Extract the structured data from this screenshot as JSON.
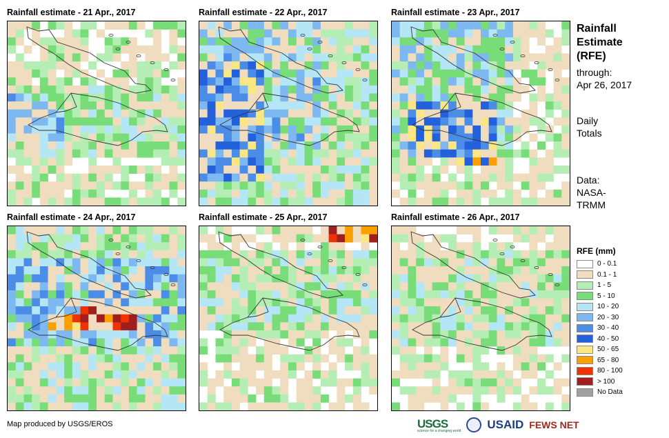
{
  "panels": [
    {
      "title": "Rainfall estimate - 21 Apr., 2017",
      "name": "map-21-apr"
    },
    {
      "title": "Rainfall estimate - 22 Apr., 2017",
      "name": "map-22-apr"
    },
    {
      "title": "Rainfall estimate - 23 Apr., 2017",
      "name": "map-23-apr"
    },
    {
      "title": "Rainfall estimate - 24 Apr., 2017",
      "name": "map-24-apr"
    },
    {
      "title": "Rainfall estimate - 25 Apr., 2017",
      "name": "map-25-apr"
    },
    {
      "title": "Rainfall estimate - 26 Apr., 2017",
      "name": "map-26-apr"
    }
  ],
  "side": {
    "title_lines": [
      "Rainfall",
      "Estimate",
      "(RFE)"
    ],
    "through_label": "through:",
    "through_date": "Apr 26, 2017",
    "daily": "Daily",
    "totals": "Totals",
    "data_label": "Data:",
    "source_1": "NASA-",
    "source_2": "TRMM"
  },
  "legend": {
    "title": "RFE (mm)",
    "items": [
      {
        "label": "0 - 0.1",
        "color": "#ffffff"
      },
      {
        "label": "0.1 - 1",
        "color": "#f0dcbe"
      },
      {
        "label": "1 - 5",
        "color": "#b4eeb4"
      },
      {
        "label": "5 - 10",
        "color": "#78dc78"
      },
      {
        "label": "10 - 20",
        "color": "#b4e6f5"
      },
      {
        "label": "20 - 30",
        "color": "#7db9f0"
      },
      {
        "label": "30 - 40",
        "color": "#4b8ce6"
      },
      {
        "label": "40 - 50",
        "color": "#2361dc"
      },
      {
        "label": "50 - 65",
        "color": "#fae682"
      },
      {
        "label": "65 - 80",
        "color": "#faa000"
      },
      {
        "label": "80 - 100",
        "color": "#f03200"
      },
      {
        "label": "> 100",
        "color": "#a01e1e"
      },
      {
        "label": "No Data",
        "color": "#a0a0a0"
      }
    ]
  },
  "footer": "Map produced by USGS/EROS",
  "logos": {
    "usgs": "USGS",
    "usgs_tagline": "science for a changing world",
    "usaid": "USAID",
    "fews": "FEWS NET"
  }
}
